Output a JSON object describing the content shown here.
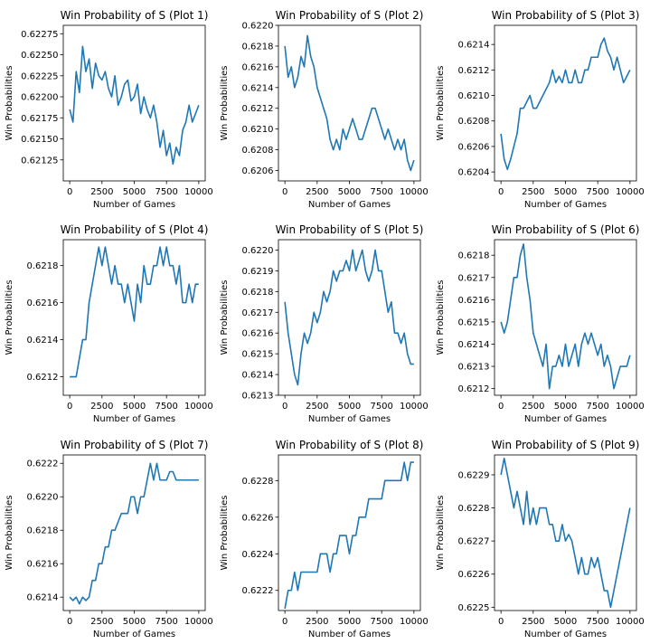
{
  "figure": {
    "line_color": "#1f77b4",
    "background": "#ffffff"
  },
  "chart_data": [
    {
      "type": "line",
      "title": "Win Probability of S (Plot 1)",
      "xlabel": "Number of Games",
      "ylabel": "Win Probabilities",
      "xlim": [
        -500,
        10500
      ],
      "ylim": [
        0.621,
        0.62285
      ],
      "xticks": [
        0,
        2500,
        5000,
        7500,
        10000
      ],
      "xtick_labels": [
        "0",
        "2500",
        "5000",
        "7500",
        "10000"
      ],
      "yticks": [
        0.62125,
        0.6215,
        0.62175,
        0.622,
        0.62225,
        0.6225,
        0.62275
      ],
      "ytick_labels": [
        "0.62125",
        "0.62150",
        "0.62175",
        "0.62200",
        "0.62225",
        "0.62250",
        "0.62275"
      ],
      "grid": false,
      "x": [
        0,
        250,
        500,
        750,
        1000,
        1250,
        1500,
        1750,
        2000,
        2250,
        2500,
        2750,
        3000,
        3250,
        3500,
        3750,
        4000,
        4250,
        4500,
        4750,
        5000,
        5250,
        5500,
        5750,
        6000,
        6250,
        6500,
        6750,
        7000,
        7250,
        7500,
        7750,
        8000,
        8250,
        8500,
        8750,
        9000,
        9250,
        9500,
        9750,
        10000
      ],
      "y": [
        0.62185,
        0.6217,
        0.6223,
        0.62205,
        0.6226,
        0.6223,
        0.62245,
        0.6221,
        0.6224,
        0.62225,
        0.6222,
        0.6223,
        0.6221,
        0.622,
        0.62225,
        0.6219,
        0.622,
        0.62215,
        0.6222,
        0.62195,
        0.622,
        0.62215,
        0.6218,
        0.622,
        0.62185,
        0.62175,
        0.6219,
        0.6217,
        0.6214,
        0.6216,
        0.6213,
        0.62145,
        0.6212,
        0.6214,
        0.6213,
        0.6216,
        0.6217,
        0.6219,
        0.6217,
        0.6218,
        0.6219
      ]
    },
    {
      "type": "line",
      "title": "Win Probability of S (Plot 2)",
      "xlabel": "Number of Games",
      "ylabel": "Win Probabilities",
      "xlim": [
        -500,
        10500
      ],
      "ylim": [
        0.6205,
        0.622
      ],
      "xticks": [
        0,
        2500,
        5000,
        7500,
        10000
      ],
      "xtick_labels": [
        "0",
        "2500",
        "5000",
        "7500",
        "10000"
      ],
      "yticks": [
        0.6206,
        0.6208,
        0.621,
        0.6212,
        0.6214,
        0.6216,
        0.6218,
        0.622
      ],
      "ytick_labels": [
        "0.6206",
        "0.6208",
        "0.6210",
        "0.6212",
        "0.6214",
        "0.6216",
        "0.6218",
        "0.6220"
      ],
      "grid": false,
      "x": [
        0,
        250,
        500,
        750,
        1000,
        1250,
        1500,
        1750,
        2000,
        2250,
        2500,
        2750,
        3000,
        3250,
        3500,
        3750,
        4000,
        4250,
        4500,
        4750,
        5000,
        5250,
        5500,
        5750,
        6000,
        6250,
        6500,
        6750,
        7000,
        7250,
        7500,
        7750,
        8000,
        8250,
        8500,
        8750,
        9000,
        9250,
        9500,
        9750,
        10000
      ],
      "y": [
        0.6218,
        0.6215,
        0.6216,
        0.6214,
        0.6215,
        0.6217,
        0.6216,
        0.6219,
        0.6217,
        0.6216,
        0.6214,
        0.6213,
        0.6212,
        0.6211,
        0.6209,
        0.6208,
        0.6209,
        0.6208,
        0.621,
        0.6209,
        0.621,
        0.6211,
        0.621,
        0.6209,
        0.6209,
        0.621,
        0.6211,
        0.6212,
        0.6212,
        0.6211,
        0.621,
        0.6209,
        0.621,
        0.6209,
        0.6208,
        0.6209,
        0.6208,
        0.6209,
        0.6207,
        0.6206,
        0.6207
      ]
    },
    {
      "type": "line",
      "title": "Win Probability of S (Plot 3)",
      "xlabel": "Number of Games",
      "ylabel": "Win Probabilities",
      "xlim": [
        -500,
        10500
      ],
      "ylim": [
        0.62033,
        0.62155
      ],
      "xticks": [
        0,
        2500,
        5000,
        7500,
        10000
      ],
      "xtick_labels": [
        "0",
        "2500",
        "5000",
        "7500",
        "10000"
      ],
      "yticks": [
        0.6204,
        0.6206,
        0.6208,
        0.621,
        0.6212,
        0.6214
      ],
      "ytick_labels": [
        "0.6204",
        "0.6206",
        "0.6208",
        "0.6210",
        "0.6212",
        "0.6214"
      ],
      "grid": false,
      "x": [
        0,
        250,
        500,
        750,
        1000,
        1250,
        1500,
        1750,
        2000,
        2250,
        2500,
        2750,
        3000,
        3250,
        3500,
        3750,
        4000,
        4250,
        4500,
        4750,
        5000,
        5250,
        5500,
        5750,
        6000,
        6250,
        6500,
        6750,
        7000,
        7250,
        7500,
        7750,
        8000,
        8250,
        8500,
        8750,
        9000,
        9250,
        9500,
        9750,
        10000
      ],
      "y": [
        0.6207,
        0.6205,
        0.62042,
        0.6205,
        0.6206,
        0.6207,
        0.6209,
        0.6209,
        0.62095,
        0.621,
        0.6209,
        0.6209,
        0.62095,
        0.621,
        0.62105,
        0.6211,
        0.6212,
        0.6211,
        0.62115,
        0.6211,
        0.6212,
        0.6211,
        0.6211,
        0.6212,
        0.6211,
        0.6211,
        0.6212,
        0.6212,
        0.6213,
        0.6213,
        0.6213,
        0.6214,
        0.62145,
        0.62135,
        0.6213,
        0.6212,
        0.6213,
        0.6212,
        0.6211,
        0.62115,
        0.6212
      ]
    },
    {
      "type": "line",
      "title": "Win Probability of S (Plot 4)",
      "xlabel": "Number of Games",
      "ylabel": "Win Probabilities",
      "xlim": [
        -500,
        10500
      ],
      "ylim": [
        0.6211,
        0.62194
      ],
      "xticks": [
        0,
        2500,
        5000,
        7500,
        10000
      ],
      "xtick_labels": [
        "0",
        "2500",
        "5000",
        "7500",
        "10000"
      ],
      "yticks": [
        0.6212,
        0.6214,
        0.6216,
        0.6218
      ],
      "ytick_labels": [
        "0.6212",
        "0.6214",
        "0.6216",
        "0.6218"
      ],
      "grid": false,
      "x": [
        0,
        250,
        500,
        750,
        1000,
        1250,
        1500,
        1750,
        2000,
        2250,
        2500,
        2750,
        3000,
        3250,
        3500,
        3750,
        4000,
        4250,
        4500,
        4750,
        5000,
        5250,
        5500,
        5750,
        6000,
        6250,
        6500,
        6750,
        7000,
        7250,
        7500,
        7750,
        8000,
        8250,
        8500,
        8750,
        9000,
        9250,
        9500,
        9750,
        10000
      ],
      "y": [
        0.6212,
        0.6212,
        0.6212,
        0.6213,
        0.6214,
        0.6214,
        0.6216,
        0.6217,
        0.6218,
        0.6219,
        0.6218,
        0.6219,
        0.6218,
        0.6217,
        0.6218,
        0.6217,
        0.6217,
        0.6216,
        0.6217,
        0.6216,
        0.6215,
        0.6217,
        0.6216,
        0.6218,
        0.6217,
        0.6217,
        0.6218,
        0.6218,
        0.6219,
        0.6218,
        0.6219,
        0.6218,
        0.6218,
        0.6217,
        0.6218,
        0.6216,
        0.6216,
        0.6217,
        0.6216,
        0.6217,
        0.6217
      ]
    },
    {
      "type": "line",
      "title": "Win Probability of S (Plot 5)",
      "xlabel": "Number of Games",
      "ylabel": "Win Probabilities",
      "xlim": [
        -500,
        10500
      ],
      "ylim": [
        0.6213,
        0.62205
      ],
      "xticks": [
        0,
        2500,
        5000,
        7500,
        10000
      ],
      "xtick_labels": [
        "0",
        "2500",
        "5000",
        "7500",
        "10000"
      ],
      "yticks": [
        0.6213,
        0.6214,
        0.6215,
        0.6216,
        0.6217,
        0.6218,
        0.6219,
        0.622
      ],
      "ytick_labels": [
        "0.6213",
        "0.6214",
        "0.6215",
        "0.6216",
        "0.6217",
        "0.6218",
        "0.6219",
        "0.6220"
      ],
      "grid": false,
      "x": [
        0,
        250,
        500,
        750,
        1000,
        1250,
        1500,
        1750,
        2000,
        2250,
        2500,
        2750,
        3000,
        3250,
        3500,
        3750,
        4000,
        4250,
        4500,
        4750,
        5000,
        5250,
        5500,
        5750,
        6000,
        6250,
        6500,
        6750,
        7000,
        7250,
        7500,
        7750,
        8000,
        8250,
        8500,
        8750,
        9000,
        9250,
        9500,
        9750,
        10000
      ],
      "y": [
        0.62175,
        0.6216,
        0.6215,
        0.6214,
        0.62135,
        0.6215,
        0.6216,
        0.62155,
        0.6216,
        0.6217,
        0.62165,
        0.6217,
        0.6218,
        0.62175,
        0.6218,
        0.6219,
        0.62185,
        0.6219,
        0.6219,
        0.62195,
        0.6219,
        0.622,
        0.6219,
        0.62195,
        0.622,
        0.6219,
        0.62185,
        0.6219,
        0.622,
        0.6219,
        0.6219,
        0.6218,
        0.6217,
        0.62175,
        0.6216,
        0.6216,
        0.62155,
        0.6216,
        0.6215,
        0.62145,
        0.62145
      ]
    },
    {
      "type": "line",
      "title": "Win Probability of S (Plot 6)",
      "xlabel": "Number of Games",
      "ylabel": "Win Probabilities",
      "xlim": [
        -500,
        10500
      ],
      "ylim": [
        0.62117,
        0.62187
      ],
      "xticks": [
        0,
        2500,
        5000,
        7500,
        10000
      ],
      "xtick_labels": [
        "0",
        "2500",
        "5000",
        "7500",
        "10000"
      ],
      "yticks": [
        0.6212,
        0.6213,
        0.6214,
        0.6215,
        0.6216,
        0.6217,
        0.6218
      ],
      "ytick_labels": [
        "0.6212",
        "0.6213",
        "0.6214",
        "0.6215",
        "0.6216",
        "0.6217",
        "0.6218"
      ],
      "grid": false,
      "x": [
        0,
        250,
        500,
        750,
        1000,
        1250,
        1500,
        1750,
        2000,
        2250,
        2500,
        2750,
        3000,
        3250,
        3500,
        3750,
        4000,
        4250,
        4500,
        4750,
        5000,
        5250,
        5500,
        5750,
        6000,
        6250,
        6500,
        6750,
        7000,
        7250,
        7500,
        7750,
        8000,
        8250,
        8500,
        8750,
        9000,
        9250,
        9500,
        9750,
        10000
      ],
      "y": [
        0.6215,
        0.62145,
        0.6215,
        0.6216,
        0.6217,
        0.6217,
        0.6218,
        0.62185,
        0.6217,
        0.6216,
        0.62145,
        0.6214,
        0.62135,
        0.6213,
        0.6214,
        0.6212,
        0.6213,
        0.6213,
        0.62135,
        0.6213,
        0.6214,
        0.6213,
        0.62135,
        0.6214,
        0.6213,
        0.6214,
        0.62145,
        0.6214,
        0.62145,
        0.6214,
        0.62135,
        0.6214,
        0.6213,
        0.62135,
        0.6213,
        0.6212,
        0.62125,
        0.6213,
        0.6213,
        0.6213,
        0.62135
      ]
    },
    {
      "type": "line",
      "title": "Win Probability of S (Plot 7)",
      "xlabel": "Number of Games",
      "ylabel": "Win Probabilities",
      "xlim": [
        -500,
        10500
      ],
      "ylim": [
        0.62132,
        0.62225
      ],
      "xticks": [
        0,
        2500,
        5000,
        7500,
        10000
      ],
      "xtick_labels": [
        "0",
        "2500",
        "5000",
        "7500",
        "10000"
      ],
      "yticks": [
        0.6214,
        0.6216,
        0.6218,
        0.622,
        0.6222
      ],
      "ytick_labels": [
        "0.6214",
        "0.6216",
        "0.6218",
        "0.6220",
        "0.6222"
      ],
      "grid": false,
      "x": [
        0,
        250,
        500,
        750,
        1000,
        1250,
        1500,
        1750,
        2000,
        2250,
        2500,
        2750,
        3000,
        3250,
        3500,
        3750,
        4000,
        4250,
        4500,
        4750,
        5000,
        5250,
        5500,
        5750,
        6000,
        6250,
        6500,
        6750,
        7000,
        7250,
        7500,
        7750,
        8000,
        8250,
        8500,
        8750,
        9000,
        9250,
        9500,
        9750,
        10000
      ],
      "y": [
        0.6214,
        0.62138,
        0.6214,
        0.62136,
        0.6214,
        0.62138,
        0.6214,
        0.6215,
        0.6215,
        0.6216,
        0.6216,
        0.6217,
        0.6217,
        0.6218,
        0.6218,
        0.62185,
        0.6219,
        0.6219,
        0.6219,
        0.622,
        0.622,
        0.6219,
        0.622,
        0.622,
        0.6221,
        0.6222,
        0.6221,
        0.6222,
        0.6221,
        0.6221,
        0.6221,
        0.62215,
        0.62215,
        0.6221,
        0.6221,
        0.6221,
        0.6221,
        0.6221,
        0.6221,
        0.6221,
        0.6221
      ]
    },
    {
      "type": "line",
      "title": "Win Probability of S (Plot 8)",
      "xlabel": "Number of Games",
      "ylabel": "Win Probabilities",
      "xlim": [
        -500,
        10500
      ],
      "ylim": [
        0.62209,
        0.62294
      ],
      "xticks": [
        0,
        2500,
        5000,
        7500,
        10000
      ],
      "xtick_labels": [
        "0",
        "2500",
        "5000",
        "7500",
        "10000"
      ],
      "yticks": [
        0.6222,
        0.6224,
        0.6226,
        0.6228
      ],
      "ytick_labels": [
        "0.6222",
        "0.6224",
        "0.6226",
        "0.6228"
      ],
      "grid": false,
      "x": [
        0,
        250,
        500,
        750,
        1000,
        1250,
        1500,
        1750,
        2000,
        2250,
        2500,
        2750,
        3000,
        3250,
        3500,
        3750,
        4000,
        4250,
        4500,
        4750,
        5000,
        5250,
        5500,
        5750,
        6000,
        6250,
        6500,
        6750,
        7000,
        7250,
        7500,
        7750,
        8000,
        8250,
        8500,
        8750,
        9000,
        9250,
        9500,
        9750,
        10000
      ],
      "y": [
        0.6221,
        0.6222,
        0.6222,
        0.6223,
        0.6222,
        0.6223,
        0.6223,
        0.6223,
        0.6223,
        0.6223,
        0.6223,
        0.6224,
        0.6224,
        0.6224,
        0.6223,
        0.6224,
        0.6224,
        0.6225,
        0.6225,
        0.6225,
        0.6224,
        0.6225,
        0.6225,
        0.6226,
        0.6226,
        0.6226,
        0.6227,
        0.6227,
        0.6227,
        0.6227,
        0.6227,
        0.6228,
        0.6228,
        0.6228,
        0.6228,
        0.6228,
        0.6228,
        0.6229,
        0.6228,
        0.6229,
        0.6229
      ]
    },
    {
      "type": "line",
      "title": "Win Probability of S (Plot 9)",
      "xlabel": "Number of Games",
      "ylabel": "Win Probabilities",
      "xlim": [
        -500,
        10500
      ],
      "ylim": [
        0.62249,
        0.62296
      ],
      "xticks": [
        0,
        2500,
        5000,
        7500,
        10000
      ],
      "xtick_labels": [
        "0",
        "2500",
        "5000",
        "7500",
        "10000"
      ],
      "yticks": [
        0.6225,
        0.6226,
        0.6227,
        0.6228,
        0.6229
      ],
      "ytick_labels": [
        "0.6225",
        "0.6226",
        "0.6227",
        "0.6228",
        "0.6229"
      ],
      "grid": false,
      "x": [
        0,
        250,
        500,
        750,
        1000,
        1250,
        1500,
        1750,
        2000,
        2250,
        2500,
        2750,
        3000,
        3250,
        3500,
        3750,
        4000,
        4250,
        4500,
        4750,
        5000,
        5250,
        5500,
        5750,
        6000,
        6250,
        6500,
        6750,
        7000,
        7250,
        7500,
        7750,
        8000,
        8250,
        8500,
        8750,
        9000,
        9250,
        9500,
        9750,
        10000
      ],
      "y": [
        0.6229,
        0.62295,
        0.6229,
        0.62285,
        0.6228,
        0.62285,
        0.6228,
        0.62275,
        0.62285,
        0.62275,
        0.6228,
        0.62275,
        0.6228,
        0.6228,
        0.6228,
        0.62275,
        0.62275,
        0.6227,
        0.6227,
        0.62275,
        0.6227,
        0.62272,
        0.6227,
        0.62265,
        0.6226,
        0.62265,
        0.6226,
        0.6226,
        0.62265,
        0.62262,
        0.62265,
        0.6226,
        0.62255,
        0.62255,
        0.6225,
        0.62255,
        0.6226,
        0.62265,
        0.6227,
        0.62275,
        0.6228
      ]
    }
  ]
}
